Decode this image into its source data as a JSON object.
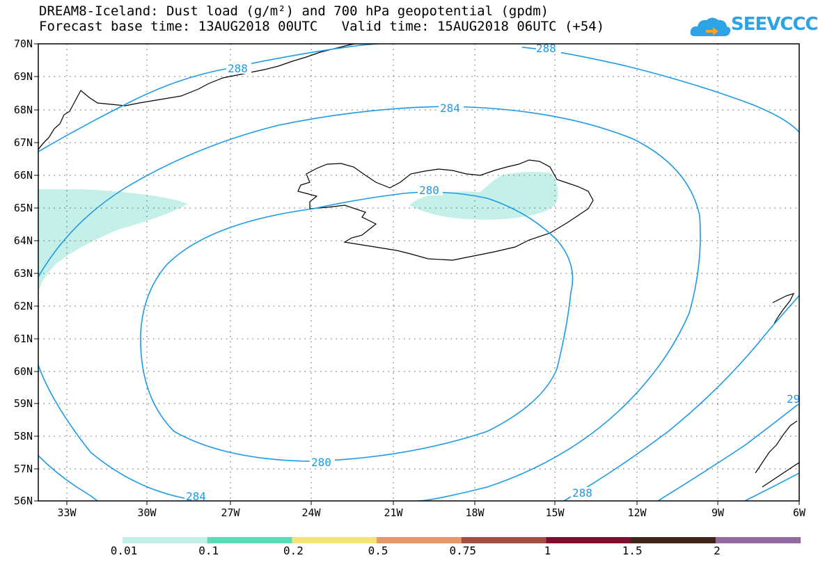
{
  "title": {
    "line1": "DREAM8-Iceland: Dust load (g/m²) and 700 hPa geopotential (gpdm)",
    "line2": "Forecast base time: 13AUG2018 00UTC   Valid time: 15AUG2018 06UTC (+54)"
  },
  "logo": {
    "text": "SEEVCCC",
    "icon": "cloud-icon"
  },
  "map": {
    "region": "Iceland",
    "lat_ticks": [
      "70N",
      "69N",
      "68N",
      "67N",
      "66N",
      "65N",
      "64N",
      "63N",
      "62N",
      "61N",
      "60N",
      "59N",
      "58N",
      "57N",
      "56N"
    ],
    "lon_ticks": [
      "33W",
      "30W",
      "27W",
      "24W",
      "21W",
      "18W",
      "15W",
      "12W",
      "9W",
      "6W"
    ],
    "grid": "dotted",
    "contour_color": "#1b9ae8",
    "contour_labels": [
      "288",
      "284",
      "280",
      "280",
      "284",
      "288",
      "288",
      "29"
    ],
    "dust_color": "#c4f0e9"
  },
  "colorbar": {
    "colors": [
      "#c4f0e9",
      "#5fd9b8",
      "#f4e27a",
      "#e9966a",
      "#a24e44",
      "#7a0f2e",
      "#3f2518",
      "#926a9e"
    ],
    "labels": [
      "0.01",
      "0.1",
      "0.2",
      "0.5",
      "0.75",
      "1",
      "1.5",
      "2"
    ]
  }
}
